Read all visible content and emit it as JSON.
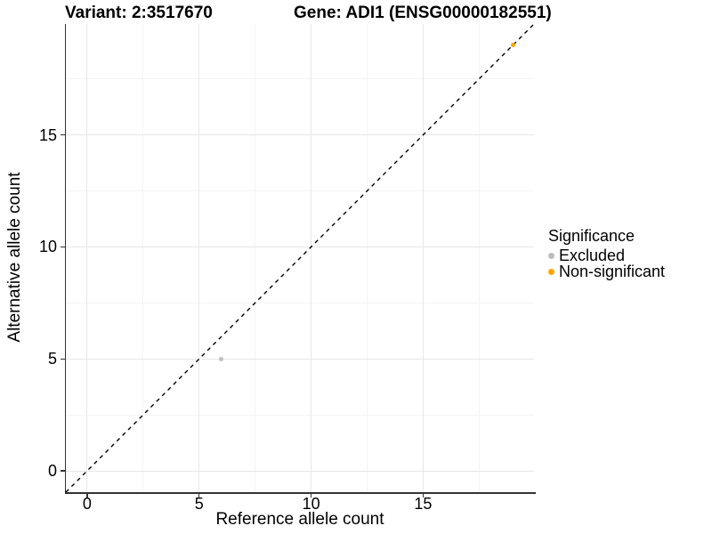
{
  "chart_data": {
    "type": "scatter",
    "title_left": "Variant: 2:3517670",
    "title_right": "Gene: ADI1 (ENSG00000182551)",
    "xlabel": "Reference allele count",
    "ylabel": "Alternative allele count",
    "xlim": [
      -0.95,
      19.95
    ],
    "ylim": [
      -0.95,
      19.95
    ],
    "x_ticks": [
      0,
      5,
      10,
      15
    ],
    "y_ticks": [
      0,
      5,
      10,
      15
    ],
    "minor_gridlines": [
      2.5,
      7.5,
      12.5,
      17.5
    ],
    "grid": "on",
    "identity_line": {
      "style": "dashed",
      "color": "#000000",
      "from": [
        -0.95,
        -0.95
      ],
      "to": [
        19.95,
        19.95
      ]
    },
    "series": [
      {
        "name": "Excluded",
        "color": "#BEBEBE",
        "points": [
          {
            "x": 6,
            "y": 5
          }
        ]
      },
      {
        "name": "Non-significant",
        "color": "#FFA500",
        "points": [
          {
            "x": 19,
            "y": 19
          }
        ]
      }
    ],
    "legend": {
      "title": "Significance",
      "position": "right",
      "entries": [
        {
          "label": "Excluded",
          "color": "#BEBEBE"
        },
        {
          "label": "Non-significant",
          "color": "#FFA500"
        }
      ]
    }
  },
  "colors": {
    "background": "#FFFFFF",
    "axis_line": "#333333",
    "grid_major": "#E7E7E7",
    "grid_minor": "#F4F4F4",
    "text": "#000000"
  }
}
